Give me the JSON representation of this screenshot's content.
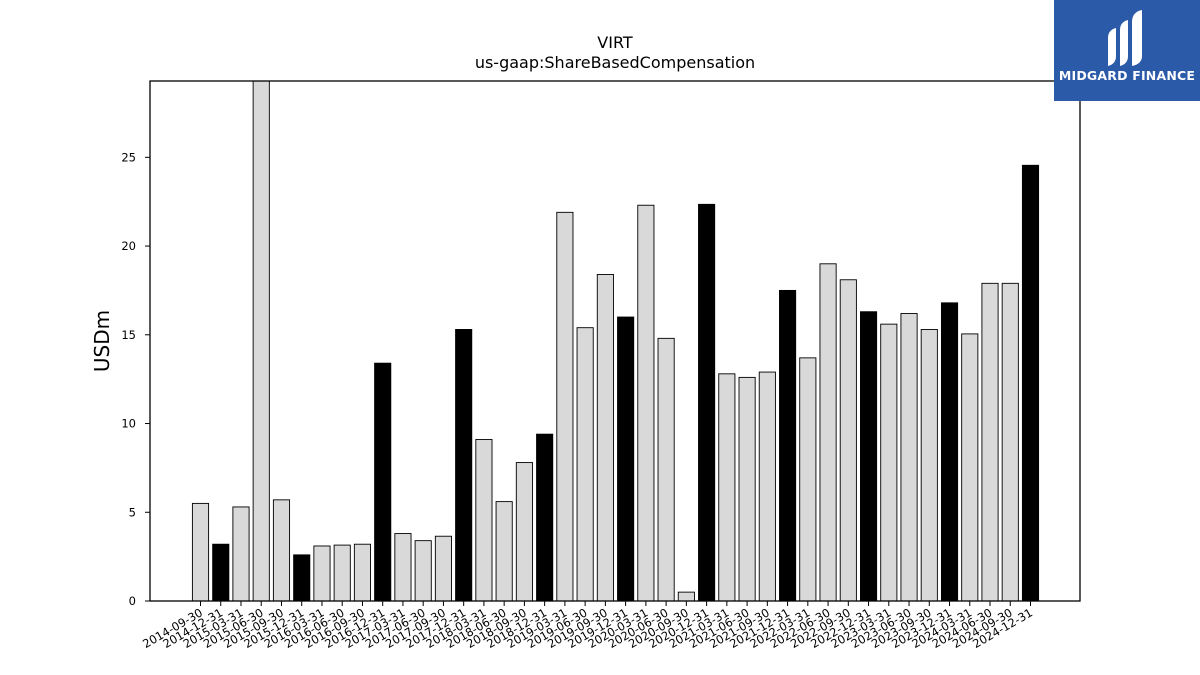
{
  "brand": {
    "name": "MIDGARD FINANCE",
    "bg_color": "#2b5aa8"
  },
  "chart_data": {
    "type": "bar",
    "title": "VIRT",
    "subtitle": "us-gaap:ShareBasedCompensation",
    "xlabel": "",
    "ylabel": "USDm",
    "ylim": [
      0,
      29.3
    ],
    "yticks": [
      0,
      5,
      10,
      15,
      20,
      25
    ],
    "grid": false,
    "colors": {
      "quarter": "#d9d9d9",
      "year_end": "#000000",
      "edge": "#000000"
    },
    "categories": [
      "2014-09-30",
      "2014-12-31",
      "2015-03-31",
      "2015-06-30",
      "2015-09-30",
      "2015-12-31",
      "2016-03-31",
      "2016-06-30",
      "2016-09-30",
      "2016-12-31",
      "2017-03-31",
      "2017-06-30",
      "2017-09-30",
      "2017-12-31",
      "2018-03-31",
      "2018-06-30",
      "2018-09-30",
      "2018-12-31",
      "2019-03-31",
      "2019-06-30",
      "2019-09-30",
      "2019-12-31",
      "2020-03-31",
      "2020-06-30",
      "2020-09-30",
      "2020-12-31",
      "2021-03-31",
      "2021-06-30",
      "2021-09-30",
      "2021-12-31",
      "2022-03-31",
      "2022-06-30",
      "2022-09-30",
      "2022-12-31",
      "2023-03-31",
      "2023-06-30",
      "2023-09-30",
      "2023-12-31",
      "2024-03-31",
      "2024-06-30",
      "2024-09-30",
      "2024-12-31"
    ],
    "values": [
      5.5,
      3.2,
      5.3,
      29.3,
      5.7,
      2.6,
      3.1,
      3.15,
      3.2,
      13.4,
      3.8,
      3.4,
      3.65,
      15.3,
      9.1,
      5.6,
      7.8,
      9.4,
      21.9,
      15.4,
      18.4,
      16.0,
      22.3,
      14.8,
      0.5,
      22.35,
      12.8,
      12.6,
      12.9,
      17.5,
      13.7,
      19.0,
      18.1,
      16.3,
      15.6,
      16.2,
      15.3,
      16.8,
      15.05,
      17.9,
      17.9,
      24.55
    ],
    "highlight": [
      false,
      true,
      false,
      false,
      false,
      true,
      false,
      false,
      false,
      true,
      false,
      false,
      false,
      true,
      false,
      false,
      false,
      true,
      false,
      false,
      false,
      true,
      false,
      false,
      false,
      true,
      false,
      false,
      false,
      true,
      false,
      false,
      false,
      true,
      false,
      false,
      false,
      true,
      false,
      false,
      false,
      true
    ]
  }
}
